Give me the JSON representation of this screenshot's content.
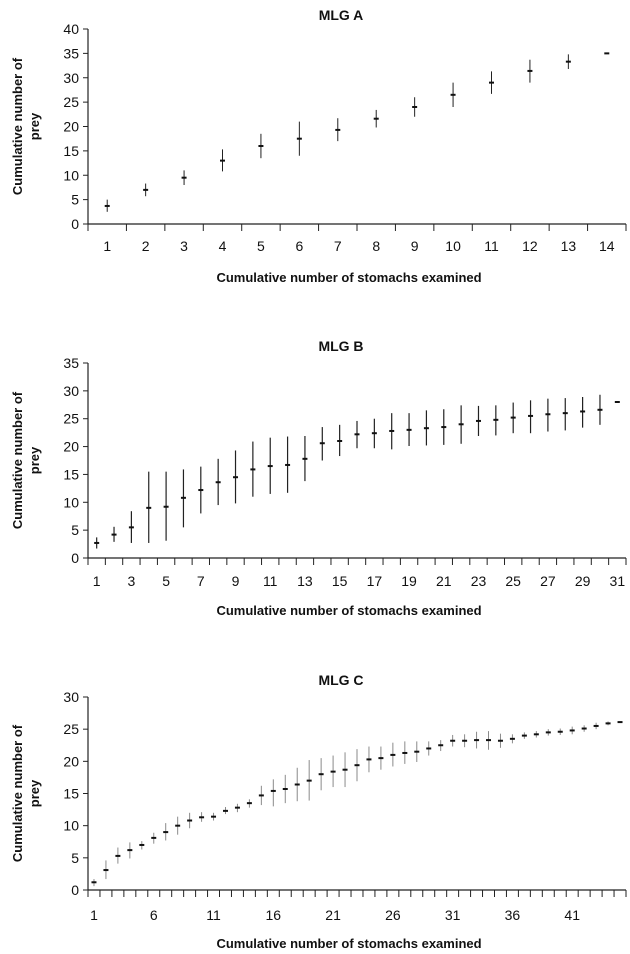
{
  "chart_data": [
    {
      "type": "scatter",
      "title": "MLG A",
      "xlabel": "Cumulative number of stomachs examined",
      "ylabel": "Cumulative number of prey",
      "ylim": [
        0,
        40
      ],
      "yticks": [
        0,
        5,
        10,
        15,
        20,
        25,
        30,
        35,
        40
      ],
      "xlim": [
        0.5,
        14.5
      ],
      "xticklabels": [
        1,
        2,
        3,
        4,
        5,
        6,
        7,
        8,
        9,
        10,
        11,
        12,
        13,
        14
      ],
      "grid": false,
      "x": [
        1,
        2,
        3,
        4,
        5,
        6,
        7,
        8,
        9,
        10,
        11,
        12,
        13,
        14
      ],
      "mean": [
        3.7,
        7.0,
        9.5,
        13.0,
        16.0,
        17.5,
        19.3,
        21.6,
        24.0,
        26.5,
        29.0,
        31.4,
        33.3,
        35.0
      ],
      "lower": [
        2.5,
        5.7,
        8.0,
        10.8,
        13.5,
        14.0,
        17.0,
        19.8,
        22.0,
        24.0,
        26.7,
        29.0,
        31.8,
        35.0
      ],
      "upper": [
        5.0,
        8.3,
        11.0,
        15.3,
        18.5,
        21.0,
        21.7,
        23.4,
        26.0,
        29.0,
        31.3,
        33.7,
        34.8,
        35.0
      ]
    },
    {
      "type": "scatter",
      "title": "MLG B",
      "xlabel": "Cumulative number of stomachs examined",
      "ylabel": "Cumulative number of prey",
      "ylim": [
        0,
        35
      ],
      "yticks": [
        0,
        5,
        10,
        15,
        20,
        25,
        30,
        35
      ],
      "xlim": [
        0.5,
        31.5
      ],
      "xticklabels": [
        1,
        3,
        5,
        7,
        9,
        11,
        13,
        15,
        17,
        19,
        21,
        23,
        25,
        27,
        29,
        31
      ],
      "grid": false,
      "x": [
        1,
        2,
        3,
        4,
        5,
        6,
        7,
        8,
        9,
        10,
        11,
        12,
        13,
        14,
        15,
        16,
        17,
        18,
        19,
        20,
        21,
        22,
        23,
        24,
        25,
        26,
        27,
        28,
        29,
        30,
        31
      ],
      "mean": [
        2.7,
        4.2,
        5.5,
        9.0,
        9.2,
        10.8,
        12.2,
        13.6,
        14.5,
        15.9,
        16.5,
        16.7,
        17.8,
        20.6,
        21.0,
        22.2,
        22.4,
        22.8,
        23.0,
        23.3,
        23.5,
        24.0,
        24.6,
        24.8,
        25.2,
        25.5,
        25.8,
        26.0,
        26.3,
        26.6,
        28.0
      ],
      "lower": [
        1.7,
        2.9,
        2.7,
        2.7,
        3.1,
        5.5,
        8.0,
        9.5,
        9.8,
        11.0,
        11.5,
        11.7,
        13.8,
        17.5,
        18.3,
        19.7,
        19.7,
        19.5,
        20.1,
        20.2,
        20.3,
        20.5,
        21.9,
        22.0,
        22.4,
        22.4,
        22.7,
        22.9,
        23.4,
        23.9,
        28.0
      ],
      "upper": [
        3.7,
        5.6,
        8.4,
        15.5,
        15.5,
        15.9,
        16.4,
        17.8,
        19.3,
        20.9,
        21.6,
        21.8,
        21.9,
        23.5,
        23.9,
        24.6,
        25.0,
        26.0,
        26.0,
        26.5,
        26.7,
        27.4,
        27.3,
        27.4,
        27.9,
        28.3,
        28.6,
        28.7,
        28.9,
        29.3,
        28.0
      ]
    },
    {
      "type": "scatter",
      "title": "MLG C",
      "xlabel": "Cumulative number of stomachs examined",
      "ylabel": "Cumulative number of prey",
      "ylim": [
        0,
        30
      ],
      "yticks": [
        0,
        5,
        10,
        15,
        20,
        25,
        30
      ],
      "xlim": [
        0.5,
        45.5
      ],
      "xticklabels": [
        1,
        6,
        11,
        16,
        21,
        26,
        31,
        36,
        41
      ],
      "grid": false,
      "x": [
        1,
        2,
        3,
        4,
        5,
        6,
        7,
        8,
        9,
        10,
        11,
        12,
        13,
        14,
        15,
        16,
        17,
        18,
        19,
        20,
        21,
        22,
        23,
        24,
        25,
        26,
        27,
        28,
        29,
        30,
        31,
        32,
        33,
        34,
        35,
        36,
        37,
        38,
        39,
        40,
        41,
        42,
        43,
        44,
        45
      ],
      "mean": [
        1.2,
        3.1,
        5.3,
        6.2,
        7.0,
        8.1,
        9.0,
        10.0,
        10.8,
        11.3,
        11.4,
        12.3,
        12.8,
        13.5,
        14.7,
        15.4,
        15.7,
        16.4,
        17.0,
        18.0,
        18.4,
        18.7,
        19.4,
        20.3,
        20.5,
        21.0,
        21.3,
        21.5,
        22.0,
        22.5,
        23.2,
        23.2,
        23.3,
        23.3,
        23.2,
        23.5,
        24.0,
        24.2,
        24.5,
        24.6,
        24.8,
        25.1,
        25.5,
        25.9,
        26.1
      ],
      "lower": [
        0.6,
        1.7,
        4.1,
        4.9,
        6.3,
        7.2,
        7.7,
        8.6,
        9.6,
        10.6,
        10.8,
        11.8,
        12.1,
        12.8,
        13.2,
        13.0,
        13.5,
        13.8,
        13.9,
        15.5,
        16.0,
        16.0,
        16.9,
        18.3,
        18.7,
        19.2,
        19.6,
        19.9,
        20.9,
        21.6,
        22.3,
        22.2,
        22.0,
        21.8,
        22.1,
        22.8,
        23.5,
        23.7,
        24.0,
        24.1,
        24.2,
        24.6,
        25.0,
        25.6,
        26.0
      ],
      "upper": [
        1.7,
        4.6,
        6.6,
        7.4,
        7.6,
        8.9,
        10.4,
        11.4,
        12.0,
        12.1,
        12.0,
        12.9,
        13.4,
        14.1,
        16.2,
        17.2,
        17.9,
        19.0,
        20.2,
        20.5,
        20.9,
        21.4,
        21.9,
        22.3,
        22.3,
        22.9,
        23.1,
        23.1,
        23.1,
        23.3,
        24.1,
        24.2,
        24.6,
        24.7,
        24.3,
        24.2,
        24.5,
        24.7,
        25.0,
        25.1,
        25.4,
        25.6,
        26.0,
        26.2,
        26.2
      ]
    }
  ]
}
